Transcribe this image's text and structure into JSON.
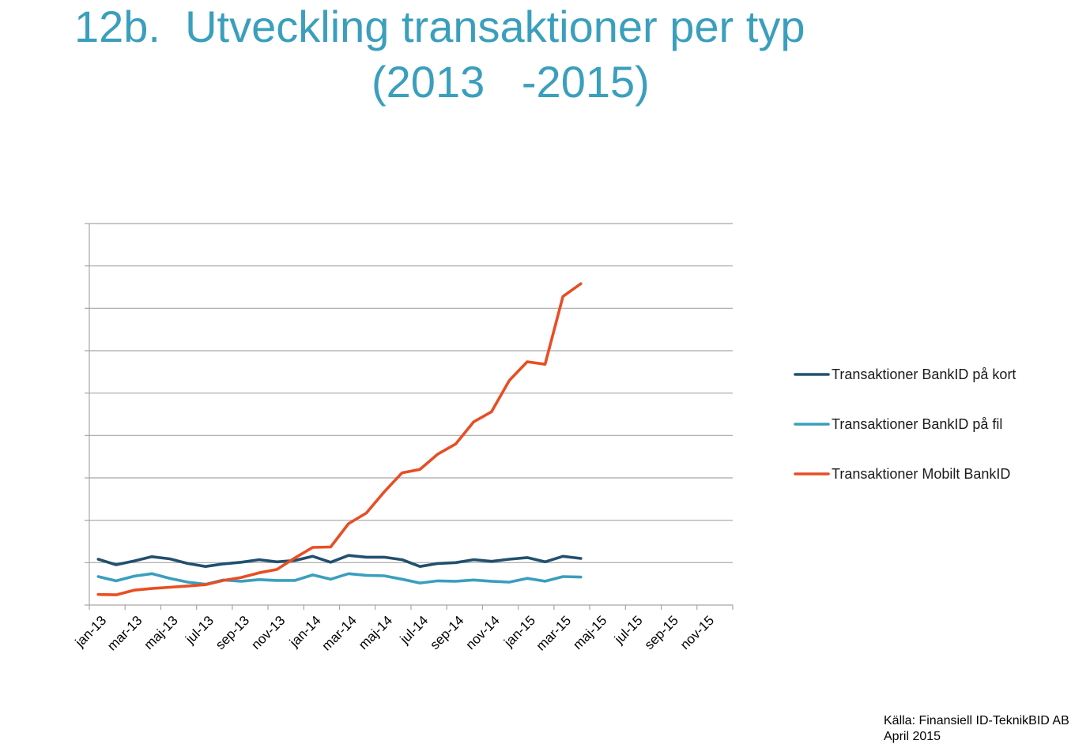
{
  "title": {
    "line1": "12b.  Utveckling transaktioner per typ",
    "line2": "(2013   -2015)"
  },
  "source": {
    "line1": "Källa: Finansiell ID-TeknikBID AB",
    "line2": "April 2015"
  },
  "chart_data": {
    "type": "line",
    "title": "12b.  Utveckling transaktioner per typ (2013   -2015)",
    "xlabel": "",
    "ylabel": "",
    "y_tick_labels_shown": false,
    "ylim": [
      0,
      9
    ],
    "grid": true,
    "legend_position": "right",
    "x_tick_labels": [
      "jan-13",
      "mar-13",
      "maj-13",
      "jul-13",
      "sep-13",
      "nov-13",
      "jan-14",
      "mar-14",
      "maj-14",
      "jul-14",
      "sep-14",
      "nov-14",
      "jan-15",
      "mar-15",
      "maj-15",
      "jul-15",
      "sep-15",
      "nov-15"
    ],
    "x_months": [
      "jan-13",
      "feb-13",
      "mar-13",
      "apr-13",
      "maj-13",
      "jun-13",
      "jul-13",
      "aug-13",
      "sep-13",
      "okt-13",
      "nov-13",
      "dec-13",
      "jan-14",
      "feb-14",
      "mar-14",
      "apr-14",
      "maj-14",
      "jun-14",
      "jul-14",
      "aug-14",
      "sep-14",
      "okt-14",
      "nov-14",
      "dec-14",
      "jan-15",
      "feb-15",
      "mar-15",
      "apr-15",
      "maj-15",
      "jun-15",
      "jul-15",
      "aug-15",
      "sep-15",
      "okt-15",
      "nov-15",
      "dec-15"
    ],
    "series": [
      {
        "name": "Transaktioner BankID på kort",
        "color": "#22506e",
        "values": [
          1.08,
          0.95,
          1.04,
          1.14,
          1.09,
          0.98,
          0.91,
          0.97,
          1.01,
          1.07,
          1.02,
          1.05,
          1.15,
          1.01,
          1.17,
          1.13,
          1.13,
          1.07,
          0.91,
          0.98,
          1.0,
          1.07,
          1.03,
          1.08,
          1.12,
          1.02,
          1.15,
          1.1
        ]
      },
      {
        "name": "Transaktioner BankID på fil",
        "color": "#3a9fbd",
        "values": [
          0.67,
          0.57,
          0.68,
          0.74,
          0.63,
          0.54,
          0.49,
          0.59,
          0.56,
          0.6,
          0.58,
          0.58,
          0.71,
          0.61,
          0.74,
          0.7,
          0.69,
          0.61,
          0.52,
          0.57,
          0.56,
          0.59,
          0.56,
          0.54,
          0.63,
          0.56,
          0.67,
          0.66
        ]
      },
      {
        "name": "Transaktioner Mobilt BankID",
        "color": "#e84e24",
        "values": [
          0.25,
          0.24,
          0.35,
          0.39,
          0.42,
          0.45,
          0.48,
          0.58,
          0.65,
          0.76,
          0.84,
          1.11,
          1.36,
          1.37,
          1.92,
          2.17,
          2.67,
          3.12,
          3.2,
          3.56,
          3.8,
          4.32,
          4.56,
          5.3,
          5.74,
          5.68,
          7.28,
          7.58
        ]
      }
    ]
  }
}
